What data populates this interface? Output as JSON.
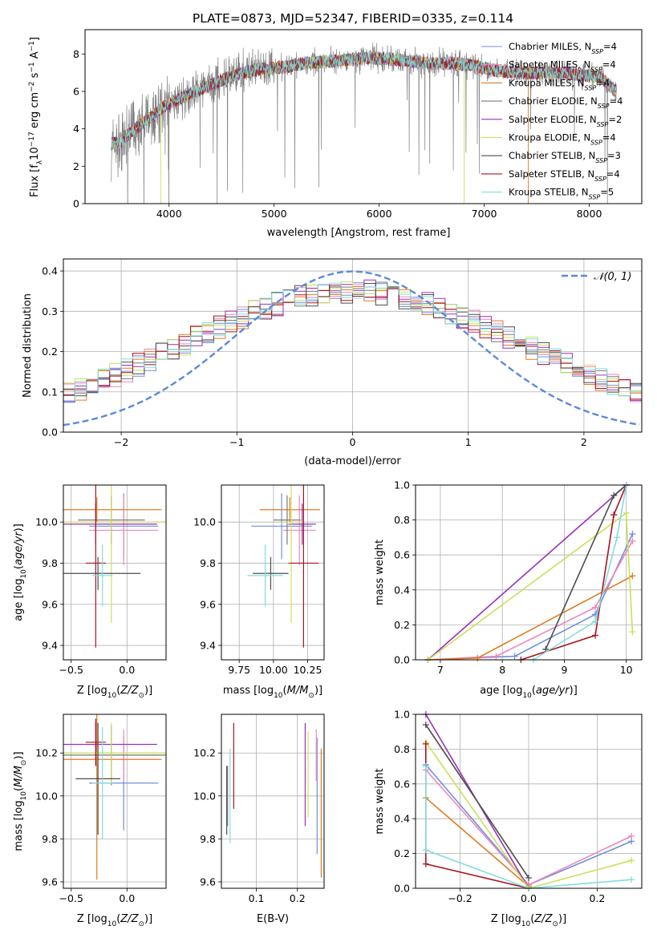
{
  "figure_title": "PLATE=0873, MJD=52347, FIBERID=0335, z=0.114",
  "colors": {
    "chabrier_miles": "#6f8fe0",
    "salpeter_miles": "#ee86bb",
    "kroupa_miles": "#e07b22",
    "chabrier_elodie": "#7a7a7a",
    "salpeter_elodie": "#9a30b8",
    "kroupa_elodie": "#c9e05a",
    "chabrier_stelib": "#4d4d4d",
    "salpeter_stelib": "#a8141e",
    "kroupa_stelib": "#84dcdf",
    "gaussian": "#5b8ad8"
  },
  "chart_data": [
    {
      "id": "spectrum",
      "type": "line",
      "title": "",
      "xlabel": "wavelength [Angstrom, rest frame]",
      "ylabel": "Flux [f_λ 10^-17 erg cm^-2 s^-1 A^-1]",
      "xlim": [
        3200,
        8500
      ],
      "ylim": [
        0,
        9.3
      ],
      "xticks": [
        4000,
        5000,
        6000,
        7000,
        8000
      ],
      "yticks": [
        0,
        2,
        4,
        6,
        8
      ],
      "grid": false,
      "legend_position": "right",
      "series": [
        {
          "name": "Chabrier MILES, N_SSP=4",
          "color_key": "chabrier_miles"
        },
        {
          "name": "Salpeter MILES, N_SSP=4",
          "color_key": "salpeter_miles"
        },
        {
          "name": "Kroupa MILES, N_SSP=4",
          "color_key": "kroupa_miles"
        },
        {
          "name": "Chabrier ELODIE, N_SSP=4",
          "color_key": "chabrier_elodie"
        },
        {
          "name": "Salpeter ELODIE, N_SSP=2",
          "color_key": "salpeter_elodie"
        },
        {
          "name": "Kroupa ELODIE, N_SSP=4",
          "color_key": "kroupa_elodie"
        },
        {
          "name": "Chabrier STELIB, N_SSP=3",
          "color_key": "chabrier_stelib"
        },
        {
          "name": "Salpeter STELIB, N_SSP=4",
          "color_key": "salpeter_stelib"
        },
        {
          "name": "Kroupa STELIB, N_SSP=5",
          "color_key": "kroupa_stelib"
        }
      ],
      "continuum_x": [
        3450,
        3550,
        3650,
        3750,
        3850,
        3950,
        4100,
        4300,
        4500,
        4700,
        4900,
        5100,
        5300,
        5500,
        5700,
        5900,
        6100,
        6300,
        6500,
        6700,
        6900,
        7100,
        7300,
        7500,
        7700,
        7900,
        8100,
        8250
      ],
      "continuum_y": [
        3.2,
        3.3,
        3.9,
        4.3,
        4.7,
        5.2,
        5.6,
        6.1,
        6.6,
        7.0,
        7.2,
        7.3,
        7.5,
        7.6,
        7.7,
        7.8,
        7.75,
        7.6,
        7.5,
        7.5,
        7.4,
        7.1,
        7.0,
        7.0,
        7.0,
        6.9,
        6.8,
        6.0
      ]
    },
    {
      "id": "residuals",
      "type": "line",
      "title": "",
      "xlabel": "(data-model)/error",
      "ylabel": "Normed distribution",
      "xlim": [
        -2.5,
        2.5
      ],
      "ylim": [
        0,
        0.43
      ],
      "xticks": [
        -2,
        -1,
        0,
        1,
        2
      ],
      "yticks": [
        0.0,
        0.1,
        0.2,
        0.3,
        0.4
      ],
      "grid": true,
      "legend_position": "top-right",
      "series": [
        {
          "name": "𝒩(0, 1)",
          "mean": 0,
          "sigma": 1,
          "color_key": "gaussian"
        }
      ],
      "histogram_bin_width": 0.1
    },
    {
      "id": "age_vs_Z",
      "type": "scatter",
      "xlabel": "Z [log10(Z/Z☉)]",
      "ylabel": "age  [log10(age/yr)]",
      "xlim": [
        -0.57,
        0.35
      ],
      "ylim": [
        9.33,
        10.18
      ],
      "xticks": [
        -0.5,
        0.0
      ],
      "yticks": [
        9.4,
        9.6,
        9.8,
        10.0
      ],
      "grid": true,
      "points": [
        {
          "x": -0.03,
          "y": 9.98,
          "xerr": 0.31,
          "yerr": 0.16,
          "color_key": "chabrier_miles"
        },
        {
          "x": -0.03,
          "y": 9.96,
          "xerr": 0.31,
          "yerr": 0.17,
          "color_key": "salpeter_miles"
        },
        {
          "x": -0.27,
          "y": 10.06,
          "xerr": 0.58,
          "yerr": 0.06,
          "color_key": "kroupa_miles"
        },
        {
          "x": -0.14,
          "y": 10.01,
          "xerr": 0.3,
          "yerr": 0.12,
          "color_key": "chabrier_elodie"
        },
        {
          "x": -0.28,
          "y": 9.99,
          "xerr": 0.55,
          "yerr": 0.1,
          "color_key": "salpeter_elodie"
        },
        {
          "x": -0.14,
          "y": 10.0,
          "xerr": 0.52,
          "yerr": 0.49,
          "color_key": "kroupa_elodie"
        },
        {
          "x": -0.26,
          "y": 9.75,
          "xerr": 0.38,
          "yerr": 0.08,
          "color_key": "chabrier_stelib"
        },
        {
          "x": -0.28,
          "y": 9.8,
          "xerr": 0.09,
          "yerr": 0.41,
          "color_key": "salpeter_stelib"
        },
        {
          "x": -0.22,
          "y": 9.74,
          "xerr": 0.09,
          "yerr": 0.15,
          "color_key": "kroupa_stelib"
        }
      ]
    },
    {
      "id": "age_vs_mass",
      "type": "scatter",
      "xlabel": "mass [log10(M/M☉)]",
      "ylabel": "",
      "xlim": [
        9.62,
        10.37
      ],
      "ylim": [
        9.33,
        10.18
      ],
      "xticks": [
        9.75,
        10.0,
        10.25
      ],
      "yticks": [
        9.4,
        9.6,
        9.8,
        10.0
      ],
      "grid": true,
      "points": [
        {
          "x": 10.06,
          "y": 9.98,
          "xerr": 0.22,
          "yerr": 0.16,
          "color_key": "chabrier_miles"
        },
        {
          "x": 10.19,
          "y": 9.96,
          "xerr": 0.12,
          "yerr": 0.17,
          "color_key": "salpeter_miles"
        },
        {
          "x": 10.12,
          "y": 10.06,
          "xerr": 0.22,
          "yerr": 0.06,
          "color_key": "kroupa_miles"
        },
        {
          "x": 10.1,
          "y": 10.01,
          "xerr": 0.1,
          "yerr": 0.12,
          "color_key": "chabrier_elodie"
        },
        {
          "x": 10.21,
          "y": 9.99,
          "xerr": 0.1,
          "yerr": 0.1,
          "color_key": "salpeter_elodie"
        },
        {
          "x": 10.13,
          "y": 10.0,
          "xerr": 0.1,
          "yerr": 0.49,
          "color_key": "kroupa_elodie"
        },
        {
          "x": 9.98,
          "y": 9.75,
          "xerr": 0.13,
          "yerr": 0.08,
          "color_key": "chabrier_stelib"
        },
        {
          "x": 10.22,
          "y": 9.8,
          "xerr": 0.11,
          "yerr": 0.41,
          "color_key": "salpeter_stelib"
        },
        {
          "x": 9.94,
          "y": 9.74,
          "xerr": 0.13,
          "yerr": 0.15,
          "color_key": "kroupa_stelib"
        }
      ]
    },
    {
      "id": "mass_weight_vs_age",
      "type": "line",
      "xlabel": "age  [log10(age/yr)]",
      "ylabel": "mass weight",
      "xlim": [
        6.6,
        10.25
      ],
      "ylim": [
        0,
        1.0
      ],
      "xticks": [
        7,
        8,
        9,
        10
      ],
      "yticks": [
        0.0,
        0.2,
        0.4,
        0.6,
        0.8,
        1.0
      ],
      "grid": true,
      "series": [
        {
          "color_key": "chabrier_miles",
          "x": [
            6.8,
            8.2,
            9.5,
            10.1
          ],
          "y": [
            0.0,
            0.02,
            0.26,
            0.72
          ]
        },
        {
          "color_key": "salpeter_miles",
          "x": [
            6.8,
            7.9,
            9.5,
            10.1
          ],
          "y": [
            0.0,
            0.02,
            0.3,
            0.68
          ]
        },
        {
          "color_key": "kroupa_miles",
          "x": [
            6.8,
            7.6,
            10.1
          ],
          "y": [
            0.0,
            0.01,
            0.48
          ]
        },
        {
          "color_key": "salpeter_elodie",
          "x": [
            6.8,
            10.0
          ],
          "y": [
            0.0,
            1.0
          ]
        },
        {
          "color_key": "kroupa_elodie",
          "x": [
            6.8,
            10.0,
            10.1
          ],
          "y": [
            0.0,
            0.84,
            0.16
          ]
        },
        {
          "color_key": "chabrier_stelib",
          "x": [
            8.7,
            9.8,
            10.0
          ],
          "y": [
            0.06,
            0.94,
            1.0
          ]
        },
        {
          "color_key": "salpeter_stelib",
          "x": [
            8.3,
            9.5,
            9.8,
            10.0
          ],
          "y": [
            0.0,
            0.14,
            0.83,
            1.0
          ]
        },
        {
          "color_key": "kroupa_stelib",
          "x": [
            8.5,
            9.5,
            9.85,
            10.0
          ],
          "y": [
            0.0,
            0.22,
            0.7,
            1.0
          ]
        }
      ]
    },
    {
      "id": "mass_vs_Z",
      "type": "scatter",
      "xlabel": "Z [log10(Z/Z☉)]",
      "ylabel": "mass [log10(M/M☉)]",
      "xlim": [
        -0.57,
        0.35
      ],
      "ylim": [
        9.57,
        10.38
      ],
      "xticks": [
        -0.5,
        0.0
      ],
      "yticks": [
        9.6,
        9.8,
        10.0,
        10.2
      ],
      "grid": true,
      "points": [
        {
          "x": -0.03,
          "y": 10.06,
          "xerr": 0.31,
          "yerr": 0.22,
          "color_key": "chabrier_miles"
        },
        {
          "x": -0.03,
          "y": 10.19,
          "xerr": 0.31,
          "yerr": 0.12,
          "color_key": "salpeter_miles"
        },
        {
          "x": -0.27,
          "y": 10.17,
          "xerr": 0.58,
          "yerr": 0.56,
          "color_key": "kroupa_miles"
        },
        {
          "x": -0.14,
          "y": 10.19,
          "xerr": 0.52,
          "yerr": 0.14,
          "color_key": "chabrier_elodie"
        },
        {
          "x": -0.28,
          "y": 10.24,
          "xerr": 0.55,
          "yerr": 0.1,
          "color_key": "salpeter_elodie"
        },
        {
          "x": -0.14,
          "y": 10.2,
          "xerr": 0.52,
          "yerr": 0.14,
          "color_key": "kroupa_elodie"
        },
        {
          "x": -0.26,
          "y": 10.08,
          "xerr": 0.2,
          "yerr": 0.26,
          "color_key": "chabrier_stelib"
        },
        {
          "x": -0.28,
          "y": 10.25,
          "xerr": 0.09,
          "yerr": 0.11,
          "color_key": "salpeter_stelib"
        },
        {
          "x": -0.22,
          "y": 10.06,
          "xerr": 0.09,
          "yerr": 0.26,
          "color_key": "kroupa_stelib"
        }
      ]
    },
    {
      "id": "mass_vs_EBV",
      "type": "scatter",
      "xlabel": "E(B-V)",
      "ylabel": "",
      "xlim": [
        0.015,
        0.265
      ],
      "ylim": [
        9.57,
        10.38
      ],
      "xticks": [
        0.1,
        0.2
      ],
      "yticks": [
        9.6,
        9.8,
        10.0,
        10.2
      ],
      "grid": true,
      "points": [
        {
          "x": 0.248,
          "y": 10.0,
          "yerr": 0.27,
          "color_key": "chabrier_miles"
        },
        {
          "x": 0.246,
          "y": 10.19,
          "yerr": 0.12,
          "color_key": "salpeter_miles"
        },
        {
          "x": 0.258,
          "y": 9.92,
          "yerr": 0.3,
          "color_key": "kroupa_miles"
        },
        {
          "x": 0.03,
          "y": 10.0,
          "yerr": 0.14,
          "color_key": "chabrier_elodie"
        },
        {
          "x": 0.219,
          "y": 10.1,
          "yerr": 0.24,
          "color_key": "salpeter_elodie"
        },
        {
          "x": 0.226,
          "y": 10.1,
          "yerr": 0.2,
          "color_key": "kroupa_elodie"
        },
        {
          "x": 0.028,
          "y": 9.98,
          "yerr": 0.16,
          "color_key": "chabrier_stelib"
        },
        {
          "x": 0.045,
          "y": 10.14,
          "yerr": 0.2,
          "color_key": "salpeter_stelib"
        },
        {
          "x": 0.036,
          "y": 10.0,
          "yerr": 0.22,
          "color_key": "kroupa_stelib"
        }
      ]
    },
    {
      "id": "mass_weight_vs_Z",
      "type": "line",
      "xlabel": "Z [log10(Z/Z☉)]",
      "ylabel": "mass weight",
      "xlim": [
        -0.33,
        0.33
      ],
      "ylim": [
        0,
        1.0
      ],
      "xticks": [
        -0.2,
        0.0,
        0.2
      ],
      "yticks": [
        0.0,
        0.2,
        0.4,
        0.6,
        0.8,
        1.0
      ],
      "grid": true,
      "series": [
        {
          "color_key": "chabrier_miles",
          "x": [
            -0.3,
            0.0,
            0.3
          ],
          "y": [
            0.71,
            0.02,
            0.27
          ]
        },
        {
          "color_key": "salpeter_miles",
          "x": [
            -0.3,
            0.0,
            0.3
          ],
          "y": [
            0.68,
            0.02,
            0.3
          ]
        },
        {
          "color_key": "kroupa_miles",
          "x": [
            -0.3,
            0.0
          ],
          "y": [
            0.52,
            0.01
          ]
        },
        {
          "color_key": "salpeter_elodie",
          "x": [
            -0.3,
            0.0
          ],
          "y": [
            1.0,
            0.0
          ]
        },
        {
          "color_key": "kroupa_elodie",
          "x": [
            -0.3,
            0.0,
            0.3
          ],
          "y": [
            0.84,
            0.0,
            0.16
          ]
        },
        {
          "color_key": "chabrier_stelib",
          "x": [
            -0.3,
            0.0
          ],
          "y": [
            0.94,
            0.06
          ]
        },
        {
          "color_key": "salpeter_stelib",
          "x": [
            -0.3,
            -0.3,
            0.0
          ],
          "y": [
            0.83,
            0.14,
            0.0
          ]
        },
        {
          "color_key": "kroupa_stelib",
          "x": [
            -0.3,
            -0.3,
            0.0,
            0.3
          ],
          "y": [
            0.7,
            0.22,
            0.0,
            0.05
          ]
        }
      ]
    }
  ]
}
